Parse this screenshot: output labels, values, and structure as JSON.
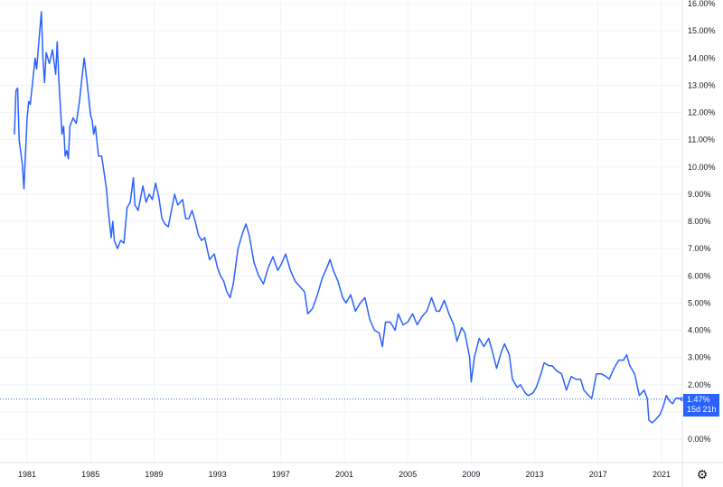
{
  "chart_data": {
    "type": "line",
    "title": "",
    "xlabel": "",
    "ylabel": "",
    "x_tick_labels": [
      "1981",
      "1985",
      "1989",
      "1993",
      "1997",
      "2001",
      "2005",
      "2009",
      "2013",
      "2017",
      "2021"
    ],
    "y_tick_labels": [
      "0.00%",
      "1.00%",
      "2.00%",
      "3.00%",
      "4.00%",
      "5.00%",
      "6.00%",
      "7.00%",
      "8.00%",
      "9.00%",
      "10.00%",
      "11.00%",
      "12.00%",
      "13.00%",
      "14.00%",
      "15.00%",
      "16.00%"
    ],
    "ylim": [
      -0.8,
      16.0
    ],
    "xlim": [
      1980.2,
      2022.4
    ],
    "grid": true,
    "series_color": "#2962ff",
    "series": [
      {
        "values": [
          [
            1980.2,
            11.2
          ],
          [
            1980.3,
            12.8
          ],
          [
            1980.4,
            12.9
          ],
          [
            1980.5,
            11.0
          ],
          [
            1980.7,
            10.1
          ],
          [
            1980.8,
            9.2
          ],
          [
            1980.9,
            10.5
          ],
          [
            1981.0,
            11.8
          ],
          [
            1981.1,
            12.4
          ],
          [
            1981.2,
            12.3
          ],
          [
            1981.4,
            13.4
          ],
          [
            1981.5,
            14.0
          ],
          [
            1981.6,
            13.6
          ],
          [
            1981.8,
            15.0
          ],
          [
            1981.9,
            15.7
          ],
          [
            1982.0,
            14.0
          ],
          [
            1982.1,
            13.1
          ],
          [
            1982.2,
            14.2
          ],
          [
            1982.4,
            13.8
          ],
          [
            1982.6,
            14.3
          ],
          [
            1982.8,
            13.4
          ],
          [
            1982.9,
            14.6
          ],
          [
            1983.0,
            13.2
          ],
          [
            1983.2,
            11.2
          ],
          [
            1983.3,
            11.5
          ],
          [
            1983.4,
            10.4
          ],
          [
            1983.5,
            10.6
          ],
          [
            1983.6,
            10.3
          ],
          [
            1983.7,
            11.5
          ],
          [
            1983.9,
            11.8
          ],
          [
            1984.1,
            11.6
          ],
          [
            1984.3,
            12.4
          ],
          [
            1984.5,
            13.5
          ],
          [
            1984.6,
            14.0
          ],
          [
            1984.8,
            13.0
          ],
          [
            1985.0,
            11.9
          ],
          [
            1985.1,
            11.7
          ],
          [
            1985.2,
            11.2
          ],
          [
            1985.3,
            11.5
          ],
          [
            1985.5,
            10.4
          ],
          [
            1985.7,
            10.4
          ],
          [
            1986.0,
            9.2
          ],
          [
            1986.1,
            8.5
          ],
          [
            1986.3,
            7.4
          ],
          [
            1986.4,
            8.0
          ],
          [
            1986.5,
            7.3
          ],
          [
            1986.7,
            7.0
          ],
          [
            1986.9,
            7.3
          ],
          [
            1987.1,
            7.2
          ],
          [
            1987.3,
            8.5
          ],
          [
            1987.5,
            8.7
          ],
          [
            1987.7,
            9.6
          ],
          [
            1987.8,
            8.6
          ],
          [
            1988.0,
            8.4
          ],
          [
            1988.3,
            9.3
          ],
          [
            1988.5,
            8.7
          ],
          [
            1988.7,
            9.0
          ],
          [
            1988.9,
            8.8
          ],
          [
            1989.1,
            9.4
          ],
          [
            1989.3,
            8.9
          ],
          [
            1989.5,
            8.1
          ],
          [
            1989.7,
            7.9
          ],
          [
            1989.9,
            7.8
          ],
          [
            1990.1,
            8.4
          ],
          [
            1990.3,
            9.0
          ],
          [
            1990.5,
            8.6
          ],
          [
            1990.8,
            8.8
          ],
          [
            1991.0,
            8.1
          ],
          [
            1991.2,
            8.1
          ],
          [
            1991.4,
            8.4
          ],
          [
            1991.6,
            8.0
          ],
          [
            1991.8,
            7.5
          ],
          [
            1992.0,
            7.3
          ],
          [
            1992.2,
            7.4
          ],
          [
            1992.5,
            6.6
          ],
          [
            1992.8,
            6.8
          ],
          [
            1993.0,
            6.3
          ],
          [
            1993.2,
            6.0
          ],
          [
            1993.4,
            5.8
          ],
          [
            1993.6,
            5.4
          ],
          [
            1993.8,
            5.2
          ],
          [
            1994.0,
            5.7
          ],
          [
            1994.3,
            7.0
          ],
          [
            1994.6,
            7.6
          ],
          [
            1994.8,
            7.9
          ],
          [
            1995.0,
            7.5
          ],
          [
            1995.3,
            6.5
          ],
          [
            1995.6,
            6.0
          ],
          [
            1995.9,
            5.7
          ],
          [
            1996.2,
            6.3
          ],
          [
            1996.5,
            6.7
          ],
          [
            1996.8,
            6.2
          ],
          [
            1997.0,
            6.4
          ],
          [
            1997.3,
            6.8
          ],
          [
            1997.6,
            6.2
          ],
          [
            1997.9,
            5.8
          ],
          [
            1998.2,
            5.6
          ],
          [
            1998.5,
            5.4
          ],
          [
            1998.7,
            4.6
          ],
          [
            1999.0,
            4.8
          ],
          [
            1999.3,
            5.3
          ],
          [
            1999.6,
            5.9
          ],
          [
            1999.9,
            6.3
          ],
          [
            2000.1,
            6.6
          ],
          [
            2000.3,
            6.2
          ],
          [
            2000.6,
            5.8
          ],
          [
            2000.9,
            5.2
          ],
          [
            2001.1,
            5.0
          ],
          [
            2001.4,
            5.3
          ],
          [
            2001.7,
            4.7
          ],
          [
            2002.0,
            5.0
          ],
          [
            2002.3,
            5.2
          ],
          [
            2002.6,
            4.4
          ],
          [
            2002.9,
            4.0
          ],
          [
            2003.2,
            3.9
          ],
          [
            2003.4,
            3.4
          ],
          [
            2003.6,
            4.3
          ],
          [
            2003.9,
            4.3
          ],
          [
            2004.2,
            4.0
          ],
          [
            2004.4,
            4.6
          ],
          [
            2004.7,
            4.2
          ],
          [
            2005.0,
            4.3
          ],
          [
            2005.3,
            4.6
          ],
          [
            2005.6,
            4.2
          ],
          [
            2005.9,
            4.5
          ],
          [
            2006.2,
            4.7
          ],
          [
            2006.5,
            5.2
          ],
          [
            2006.8,
            4.7
          ],
          [
            2007.0,
            4.7
          ],
          [
            2007.3,
            5.1
          ],
          [
            2007.6,
            4.6
          ],
          [
            2007.9,
            4.2
          ],
          [
            2008.1,
            3.6
          ],
          [
            2008.4,
            4.1
          ],
          [
            2008.6,
            3.9
          ],
          [
            2008.9,
            3.0
          ],
          [
            2009.0,
            2.1
          ],
          [
            2009.2,
            3.0
          ],
          [
            2009.5,
            3.7
          ],
          [
            2009.8,
            3.4
          ],
          [
            2010.1,
            3.7
          ],
          [
            2010.3,
            3.3
          ],
          [
            2010.6,
            2.6
          ],
          [
            2010.9,
            3.2
          ],
          [
            2011.1,
            3.5
          ],
          [
            2011.4,
            3.1
          ],
          [
            2011.6,
            2.2
          ],
          [
            2011.9,
            1.9
          ],
          [
            2012.1,
            2.0
          ],
          [
            2012.4,
            1.7
          ],
          [
            2012.6,
            1.6
          ],
          [
            2012.9,
            1.7
          ],
          [
            2013.1,
            1.9
          ],
          [
            2013.4,
            2.4
          ],
          [
            2013.6,
            2.8
          ],
          [
            2013.9,
            2.7
          ],
          [
            2014.1,
            2.7
          ],
          [
            2014.4,
            2.5
          ],
          [
            2014.7,
            2.4
          ],
          [
            2015.0,
            1.8
          ],
          [
            2015.3,
            2.3
          ],
          [
            2015.6,
            2.2
          ],
          [
            2015.9,
            2.2
          ],
          [
            2016.1,
            1.8
          ],
          [
            2016.4,
            1.6
          ],
          [
            2016.6,
            1.5
          ],
          [
            2016.9,
            2.4
          ],
          [
            2017.2,
            2.4
          ],
          [
            2017.5,
            2.3
          ],
          [
            2017.7,
            2.2
          ],
          [
            2018.0,
            2.6
          ],
          [
            2018.3,
            2.9
          ],
          [
            2018.6,
            2.9
          ],
          [
            2018.8,
            3.1
          ],
          [
            2019.0,
            2.7
          ],
          [
            2019.3,
            2.4
          ],
          [
            2019.6,
            1.6
          ],
          [
            2019.9,
            1.8
          ],
          [
            2020.1,
            1.5
          ],
          [
            2020.2,
            0.7
          ],
          [
            2020.4,
            0.6
          ],
          [
            2020.6,
            0.7
          ],
          [
            2020.9,
            0.9
          ],
          [
            2021.1,
            1.2
          ],
          [
            2021.3,
            1.6
          ],
          [
            2021.5,
            1.4
          ],
          [
            2021.7,
            1.3
          ],
          [
            2021.9,
            1.5
          ],
          [
            2022.1,
            1.5
          ],
          [
            2022.3,
            1.47
          ]
        ]
      }
    ],
    "last_value_label": "1.47%",
    "countdown_label": "15d 21h"
  },
  "settings_icon": "gear-icon"
}
